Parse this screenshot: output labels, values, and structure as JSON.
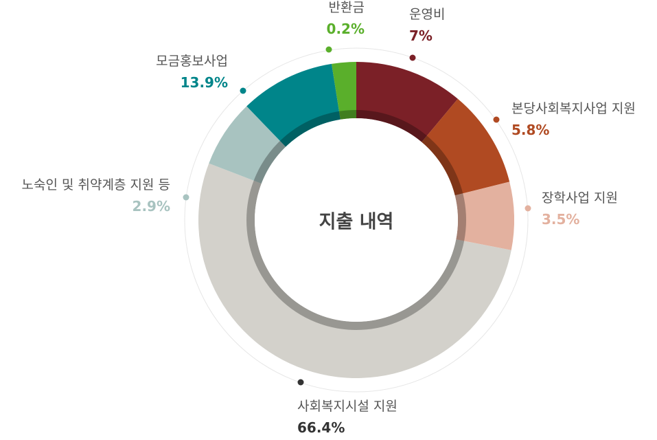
{
  "chart_data": {
    "type": "pie",
    "title": "지출 내역",
    "slices": [
      {
        "label": "운영비",
        "value": 7,
        "value_label": "7%",
        "color": "#7b2027"
      },
      {
        "label": "본당사회복지사업 지원",
        "value": 5.8,
        "value_label": "5.8%",
        "color": "#b04a22"
      },
      {
        "label": "장학사업 지원",
        "value": 3.5,
        "value_label": "3.5%",
        "color": "#e3b19f"
      },
      {
        "label": "사회복지시설 지원",
        "value": 66.4,
        "value_label": "66.4%",
        "color": "#d3d1cb"
      },
      {
        "label": "노숙인 및 취약계층 지원 등",
        "value": 2.9,
        "value_label": "2.9%",
        "color": "#a8c3c0"
      },
      {
        "label": "모금홍보사업",
        "value": 13.9,
        "value_label": "13.9%",
        "color": "#00858a"
      },
      {
        "label": "반환금",
        "value": 0.2,
        "value_label": "0.2%",
        "color": "#5aaf2b"
      }
    ],
    "label_colors": {
      "운영비": "#7b2027",
      "본당사회복지사업 지원": "#b04a22",
      "장학사업 지원": "#e3b19f",
      "사회복지시설 지원": "#333333",
      "노숙인 및 취약계층 지원 등": "#a8c3c0",
      "모금홍보사업": "#00858a",
      "반환금": "#5aaf2b"
    }
  }
}
